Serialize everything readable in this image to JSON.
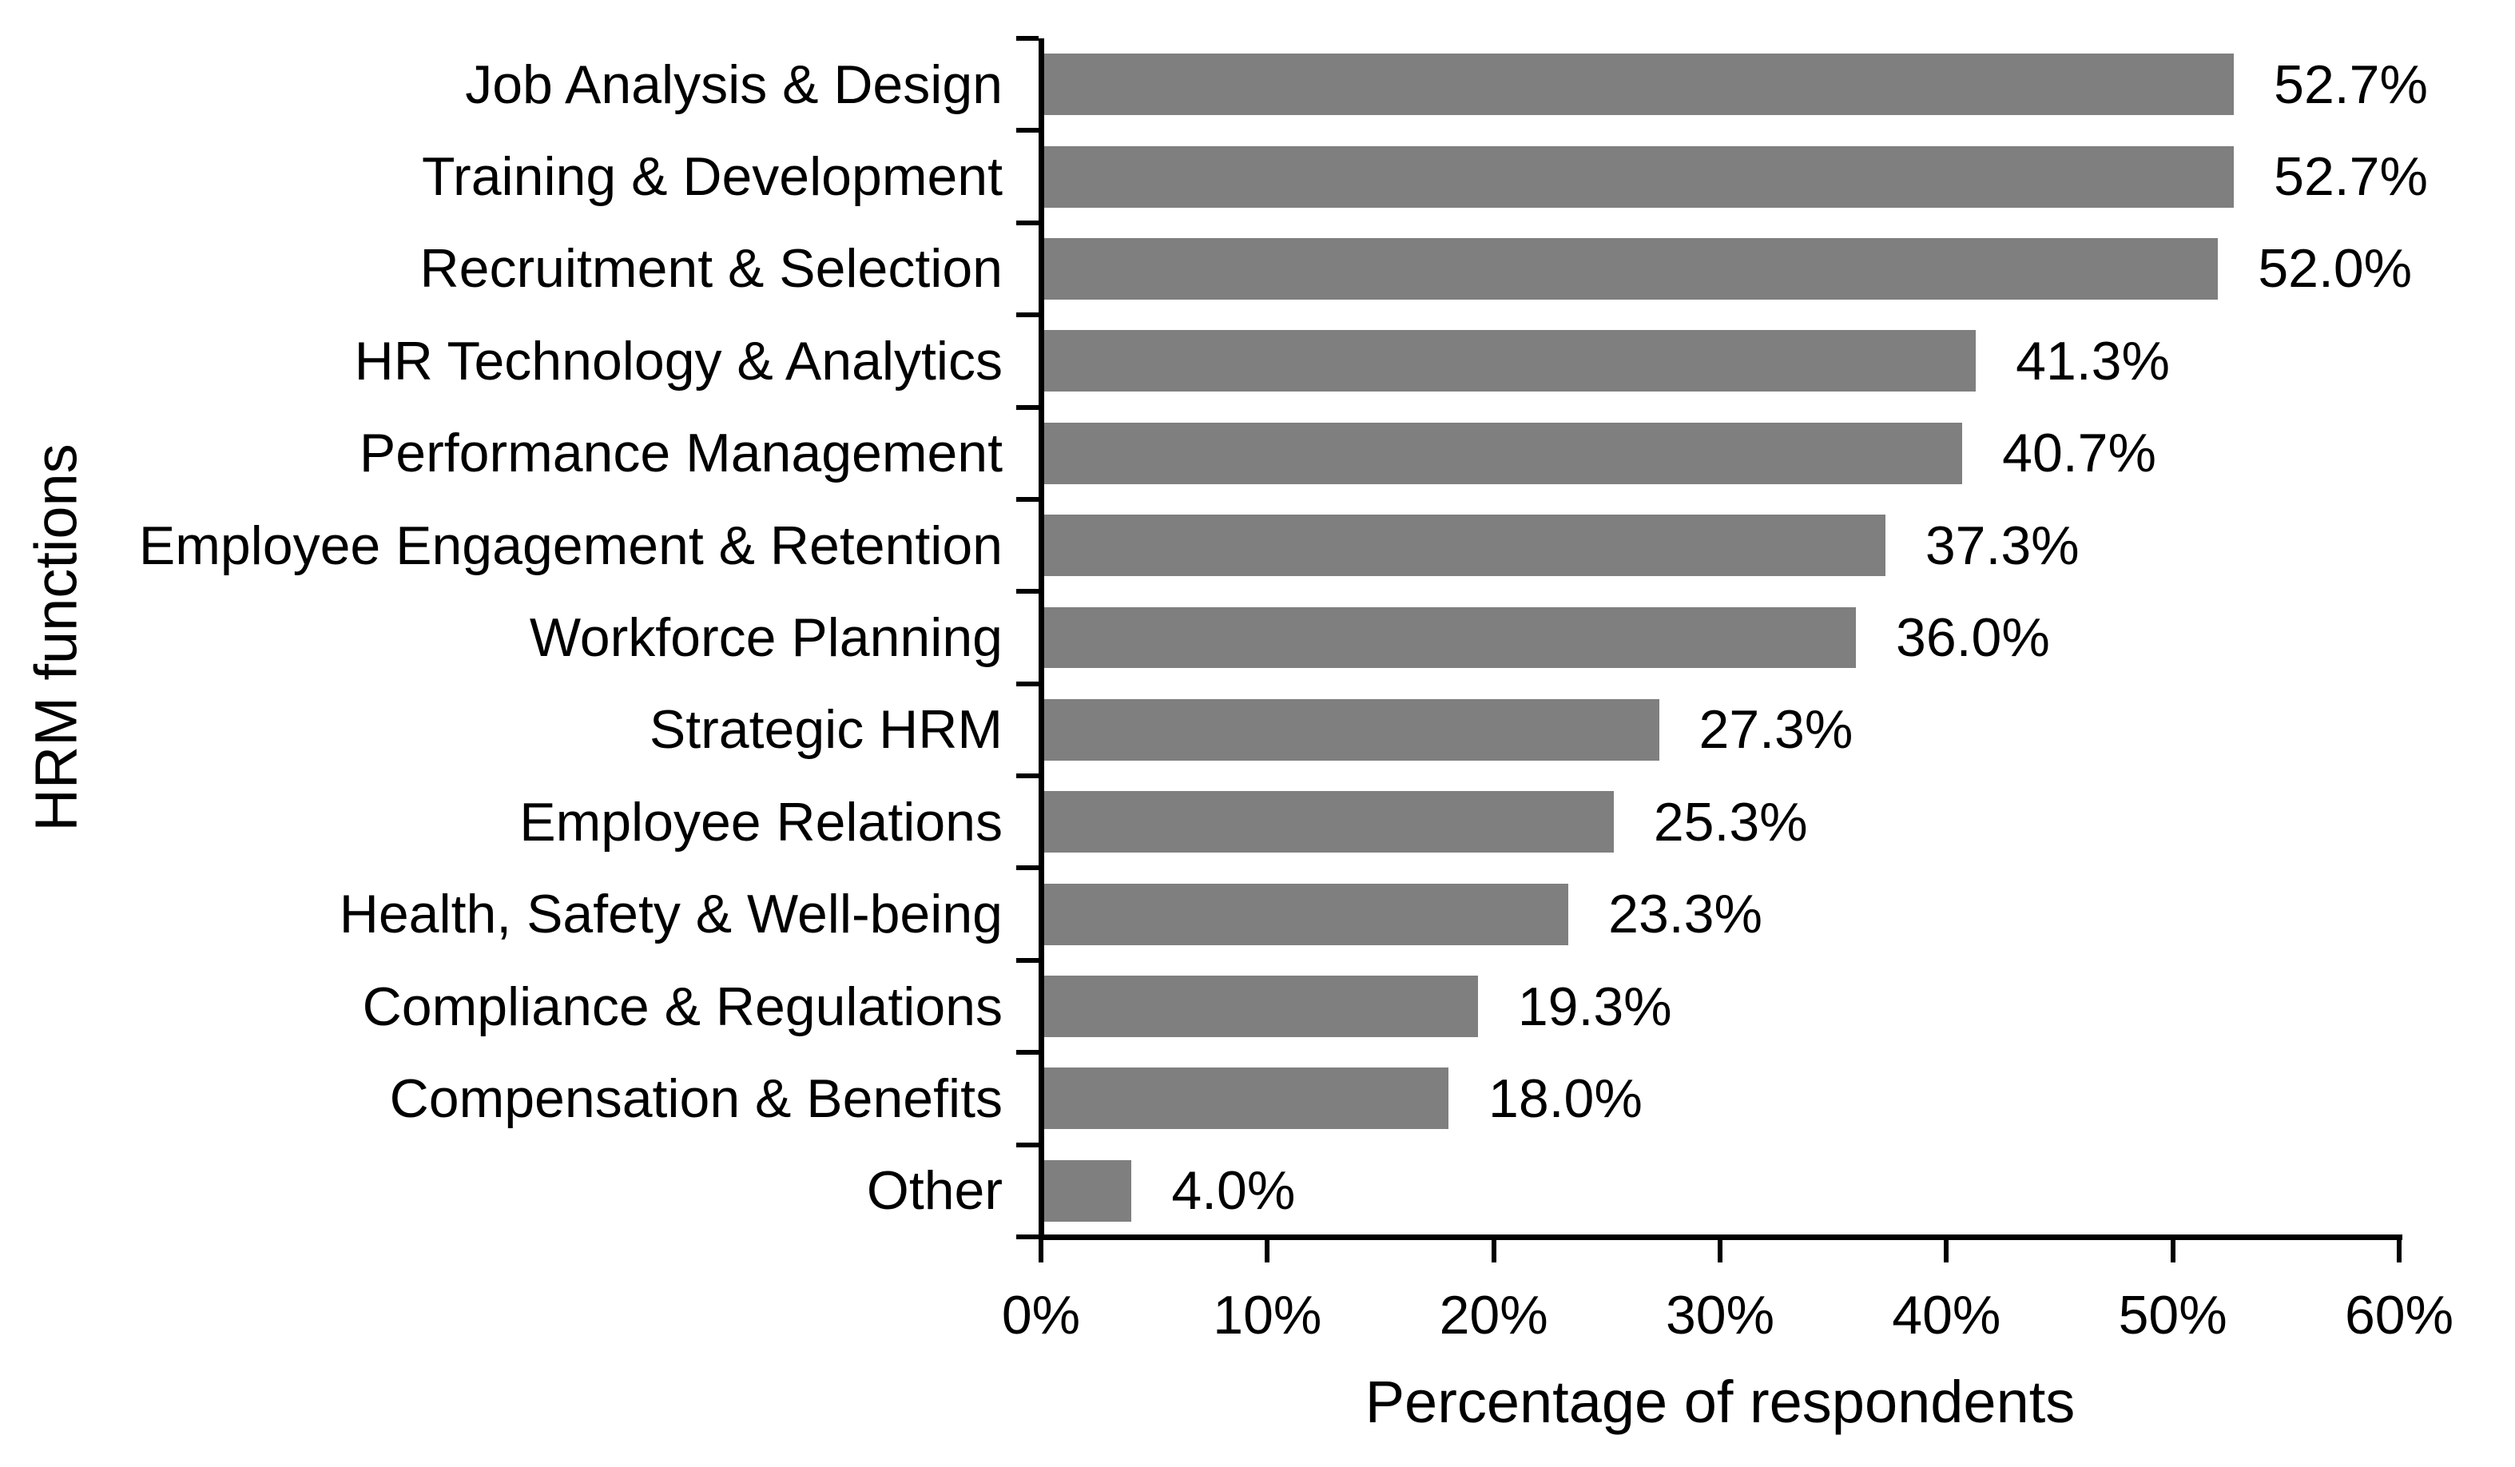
{
  "chart_data": {
    "type": "bar",
    "orientation": "horizontal",
    "title": "",
    "xlabel": "Percentage of respondents",
    "ylabel": "HRM functions",
    "categories": [
      "Job Analysis & Design",
      "Training & Development",
      "Recruitment & Selection",
      "HR Technology & Analytics",
      "Performance Management",
      "Employee Engagement & Retention",
      "Workforce Planning",
      "Strategic HRM",
      "Employee Relations",
      "Health, Safety & Well-being",
      "Compliance & Regulations",
      "Compensation & Benefits",
      "Other"
    ],
    "values": [
      52.7,
      52.7,
      52.0,
      41.3,
      40.7,
      37.3,
      36.0,
      27.3,
      25.3,
      23.3,
      19.3,
      18.0,
      4.0
    ],
    "value_labels": [
      "52.7%",
      "52.7%",
      "52.0%",
      "41.3%",
      "40.7%",
      "37.3%",
      "36.0%",
      "27.3%",
      "25.3%",
      "23.3%",
      "19.3%",
      "18.0%",
      "4.0%"
    ],
    "xlim": [
      0,
      60
    ],
    "x_tick_values": [
      0,
      10,
      20,
      30,
      40,
      50,
      60
    ],
    "x_ticks": [
      "0%",
      "10%",
      "20%",
      "30%",
      "40%",
      "50%",
      "60%"
    ],
    "grid": false,
    "legend": false,
    "bar_color": "#7F7F7F",
    "axis_color": "#000000",
    "text_color": "#000000",
    "background_color": "#FFFFFF"
  }
}
